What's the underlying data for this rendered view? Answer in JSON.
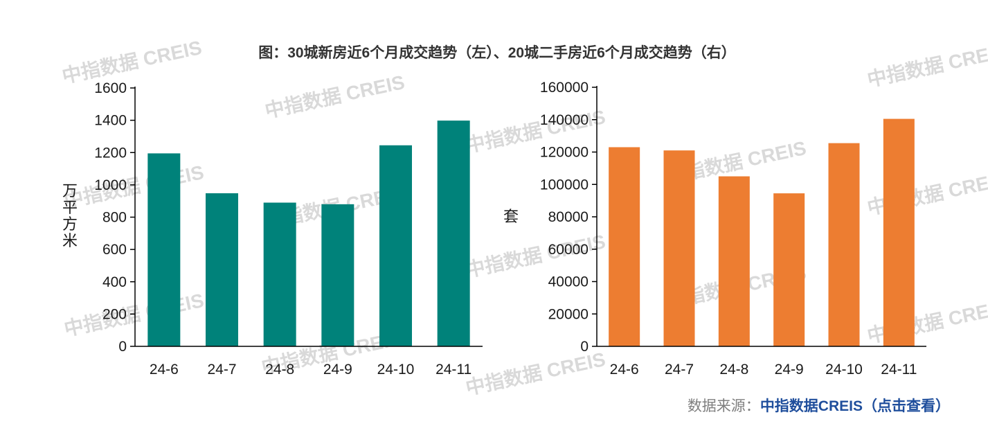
{
  "title": "图：30城新房近6个月成交趋势（左）、20城二手房近6个月成交趋势（右）",
  "watermark": "中指数据 CREIS",
  "source": {
    "prefix": "数据来源：",
    "link_label": "中指数据CREIS（点击查看）",
    "prefix_color": "#7f7f7f",
    "link_color": "#1f4e9c"
  },
  "chart_data": [
    {
      "type": "bar",
      "categories": [
        "24-6",
        "24-7",
        "24-8",
        "24-9",
        "24-10",
        "24-11"
      ],
      "values": [
        1195,
        948,
        890,
        880,
        1245,
        1398
      ],
      "ylabel": "万平方米",
      "ylim": [
        0,
        1600
      ],
      "yticks": [
        0,
        200,
        400,
        600,
        800,
        1000,
        1200,
        1400,
        1600
      ],
      "color": "#00827a",
      "grid": false
    },
    {
      "type": "bar",
      "categories": [
        "24-6",
        "24-7",
        "24-8",
        "24-9",
        "24-10",
        "24-11"
      ],
      "values": [
        123000,
        121000,
        105000,
        94500,
        125500,
        140500
      ],
      "ylabel": "套",
      "ylim": [
        0,
        160000
      ],
      "yticks": [
        0,
        20000,
        40000,
        60000,
        80000,
        100000,
        120000,
        140000,
        160000
      ],
      "color": "#ed7d31",
      "grid": false
    }
  ]
}
